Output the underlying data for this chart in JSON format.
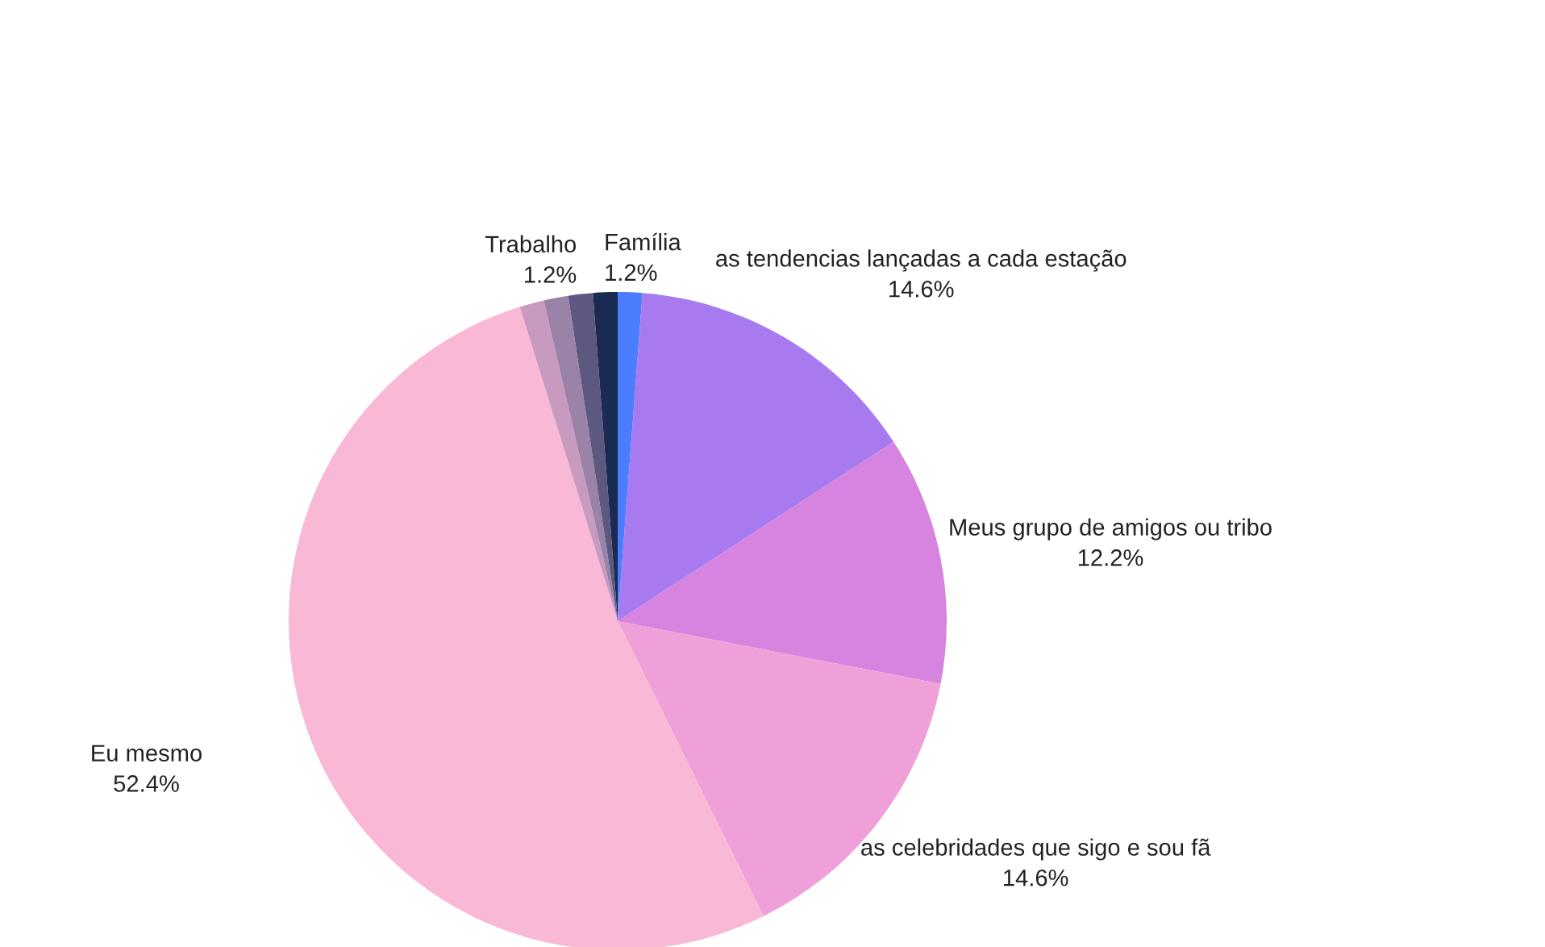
{
  "chart_data": {
    "type": "pie",
    "categories": [
      null,
      "as tendencias lançadas a cada estação",
      "Meus grupo de amigos ou tribo",
      "as celebridades que sigo e sou fã",
      "Eu mesmo",
      null,
      null,
      "Trabalho",
      "Família"
    ],
    "values": [
      1.2,
      14.6,
      12.2,
      14.6,
      52.4,
      1.2,
      1.2,
      1.2,
      1.2
    ],
    "value_labels": [
      null,
      "14.6%",
      "12.2%",
      "14.6%",
      "52.4%",
      null,
      null,
      "1.2%",
      "1.2%"
    ],
    "colors": [
      "#4a7dff",
      "#a87af0",
      "#d684e0",
      "#f0a0d8",
      "#f9b8d6",
      "#c99ac0",
      "#9a82a8",
      "#5c5880",
      "#1a2a50"
    ],
    "legend": false
  }
}
